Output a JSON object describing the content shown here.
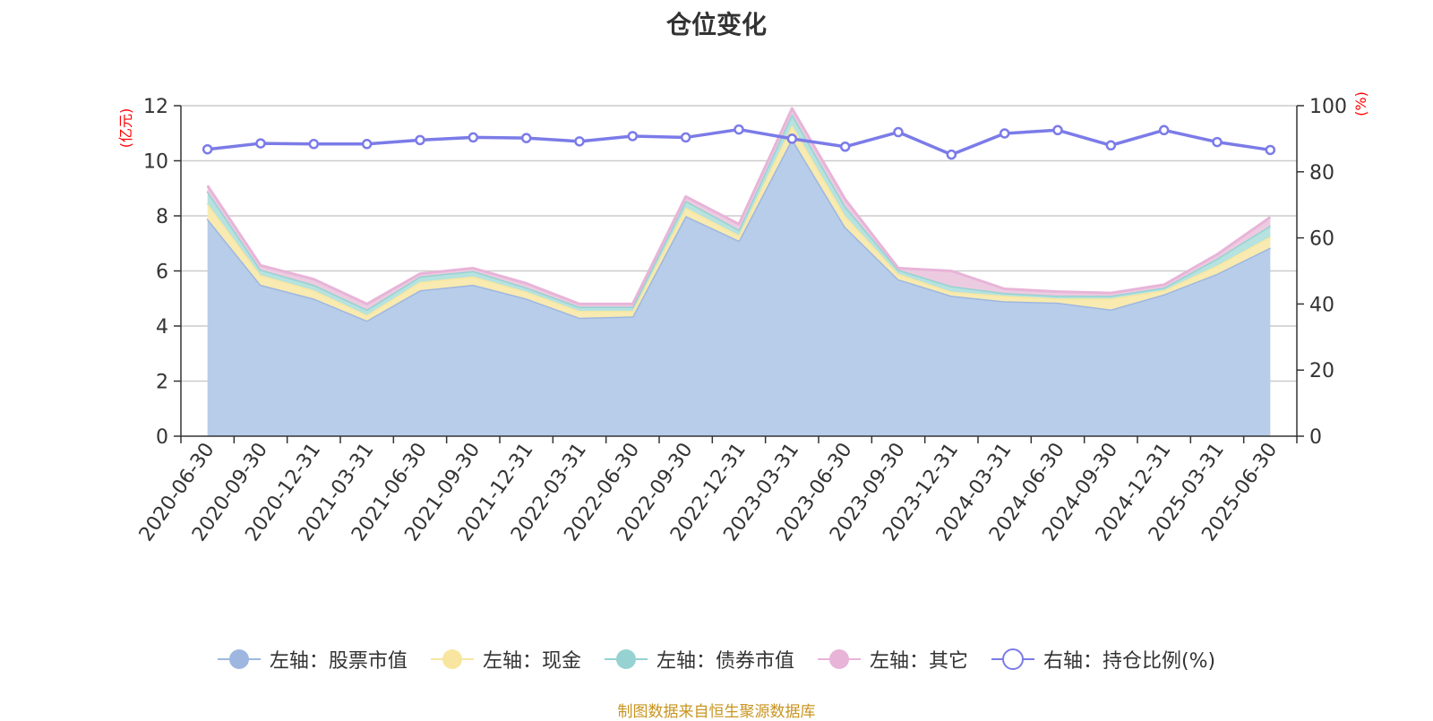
{
  "chart_data": {
    "type": "area",
    "title": "仓位变化",
    "left_axis_unit": "(亿元)",
    "right_axis_unit": "(%)",
    "x": [
      "2020-06-30",
      "2020-09-30",
      "2020-12-31",
      "2021-03-31",
      "2021-06-30",
      "2021-09-30",
      "2021-12-31",
      "2022-03-31",
      "2022-06-30",
      "2022-09-30",
      "2022-12-31",
      "2023-03-31",
      "2023-06-30",
      "2023-09-30",
      "2023-12-31",
      "2024-03-31",
      "2024-06-30",
      "2024-09-30",
      "2024-12-31",
      "2025-03-31",
      "2025-06-30"
    ],
    "ylim_left": [
      0,
      12
    ],
    "yticks_left": [
      0,
      2,
      4,
      6,
      8,
      10,
      12
    ],
    "ylim_right": [
      0,
      100
    ],
    "yticks_right": [
      0,
      20,
      40,
      60,
      80,
      100
    ],
    "grid": true,
    "legend_position": "bottom",
    "stacked": true,
    "series": [
      {
        "name": "左轴：股票市值",
        "axis": "left",
        "kind": "area",
        "color": "#9db7e0",
        "fill": "#b8cdea",
        "values": [
          7.9,
          5.5,
          5.0,
          4.2,
          5.3,
          5.5,
          5.0,
          4.3,
          4.35,
          8.0,
          7.1,
          10.8,
          7.6,
          5.7,
          5.1,
          4.9,
          4.85,
          4.6,
          5.15,
          5.9,
          6.85
        ]
      },
      {
        "name": "左轴：现金",
        "axis": "left",
        "kind": "area",
        "color": "#f8e6a0",
        "fill": "#f8eab0",
        "values": [
          0.55,
          0.35,
          0.3,
          0.2,
          0.3,
          0.3,
          0.25,
          0.25,
          0.2,
          0.3,
          0.2,
          0.5,
          0.4,
          0.2,
          0.15,
          0.2,
          0.15,
          0.4,
          0.15,
          0.3,
          0.4
        ]
      },
      {
        "name": "左轴：债券市值",
        "axis": "left",
        "kind": "area",
        "color": "#96d2d2",
        "fill": "#b6e2df",
        "values": [
          0.45,
          0.2,
          0.2,
          0.2,
          0.2,
          0.2,
          0.15,
          0.15,
          0.15,
          0.25,
          0.2,
          0.4,
          0.35,
          0.15,
          0.2,
          0.1,
          0.1,
          0.1,
          0.1,
          0.25,
          0.4
        ]
      },
      {
        "name": "左轴：其它",
        "axis": "left",
        "kind": "area",
        "color": "#e8b4d8",
        "fill": "#eccbe0",
        "values": [
          0.2,
          0.15,
          0.2,
          0.2,
          0.1,
          0.1,
          0.15,
          0.1,
          0.1,
          0.15,
          0.2,
          0.2,
          0.25,
          0.05,
          0.55,
          0.15,
          0.15,
          0.1,
          0.1,
          0.15,
          0.3
        ]
      },
      {
        "name": "右轴：持仓比例(%)",
        "axis": "right",
        "kind": "line",
        "color": "#7b7be8",
        "values": [
          86.8,
          88.6,
          88.4,
          88.4,
          89.6,
          90.4,
          90.2,
          89.2,
          90.8,
          90.4,
          92.8,
          90.0,
          87.6,
          92.0,
          85.2,
          91.6,
          92.6,
          88.0,
          92.6,
          89.0,
          86.6
        ]
      }
    ]
  },
  "source_note": "制图数据来自恒生聚源数据库"
}
